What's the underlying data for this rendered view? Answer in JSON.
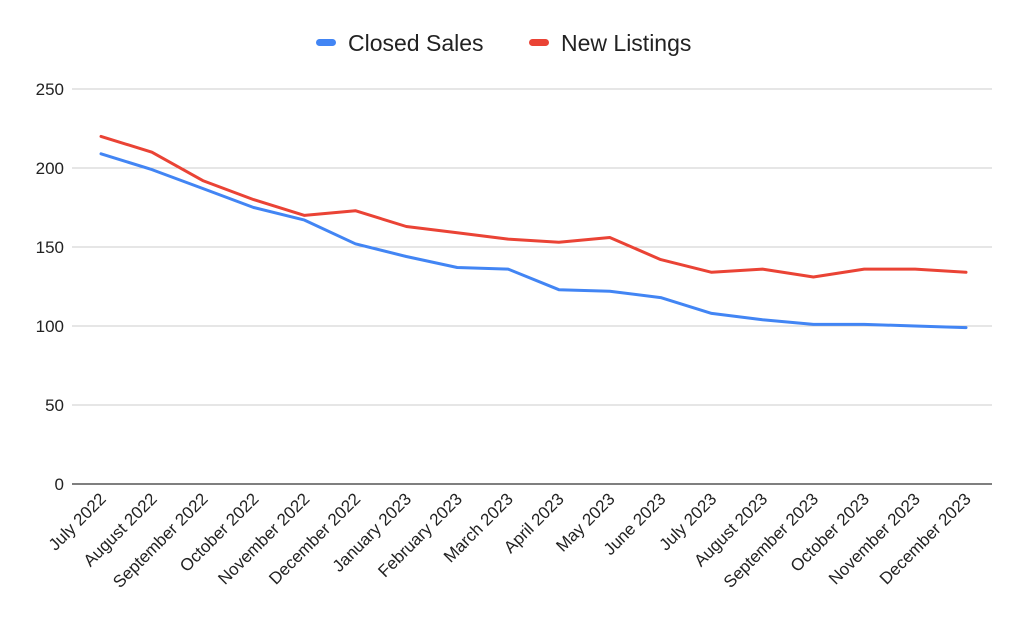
{
  "chart_data": {
    "type": "line",
    "title": "",
    "xlabel": "",
    "ylabel": "",
    "categories": [
      "July 2022",
      "August 2022",
      "September 2022",
      "October 2022",
      "November 2022",
      "December 2022",
      "January 2023",
      "February 2023",
      "March 2023",
      "April 2023",
      "May 2023",
      "June 2023",
      "July 2023",
      "August 2023",
      "September 2023",
      "October 2023",
      "November 2023",
      "December 2023"
    ],
    "series": [
      {
        "name": "Closed Sales",
        "color": "#4285f4",
        "values": [
          209,
          199,
          187,
          175,
          167,
          152,
          144,
          137,
          136,
          123,
          122,
          118,
          108,
          104,
          101,
          101,
          100,
          99
        ]
      },
      {
        "name": "New Listings",
        "color": "#ea4335",
        "values": [
          220,
          210,
          192,
          180,
          170,
          173,
          163,
          159,
          155,
          153,
          156,
          142,
          134,
          136,
          131,
          136,
          136,
          134
        ]
      }
    ],
    "ylim": [
      0,
      250
    ],
    "yticks": [
      "0",
      "50",
      "100",
      "150",
      "200",
      "250"
    ],
    "grid": true,
    "legend_position": "top-center"
  }
}
